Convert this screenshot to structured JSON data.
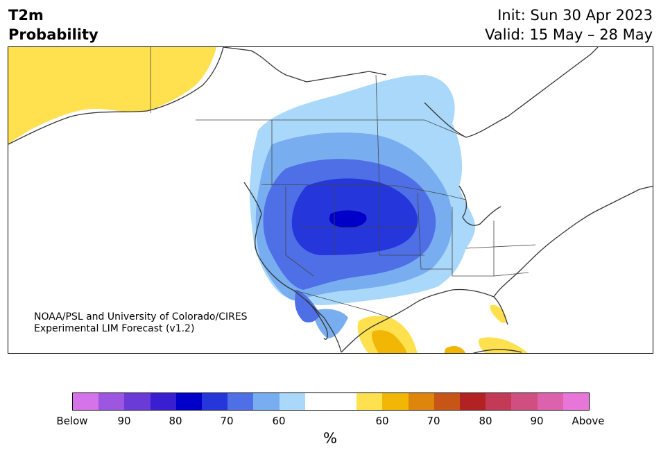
{
  "header": {
    "variable": "T2m",
    "product": "Probability",
    "init": "Init: Sun 30 Apr 2023",
    "valid": "Valid: 15 May – 28 May"
  },
  "credit": {
    "line1": "NOAA/PSL and University of Colorado/CIRES",
    "line2": "Experimental LIM Forecast (v1.2)"
  },
  "colorbar": {
    "colors": [
      "#d574e8",
      "#9c56e0",
      "#6b3bd8",
      "#3a1fd2",
      "#0000c8",
      "#2536da",
      "#4f6fe6",
      "#78aef0",
      "#aad8fa",
      "#ffffff",
      "#ffffff",
      "#ffe04e",
      "#f2b705",
      "#de850c",
      "#c85518",
      "#b22222",
      "#c23a55",
      "#cf4f80",
      "#dc62ad",
      "#e876d8"
    ],
    "labels": [
      "Below",
      "90",
      "80",
      "70",
      "60",
      "60",
      "70",
      "80",
      "90",
      "Above"
    ],
    "unit": "%"
  },
  "map": {
    "colors": {
      "above60": "#ffe04e",
      "above70": "#f2b705",
      "below60": "#aad8fa",
      "below70": "#78aef0",
      "below80": "#4f6fe6",
      "below90": "#2536da",
      "below_extreme": "#0000c8",
      "coast": "#333333"
    }
  }
}
